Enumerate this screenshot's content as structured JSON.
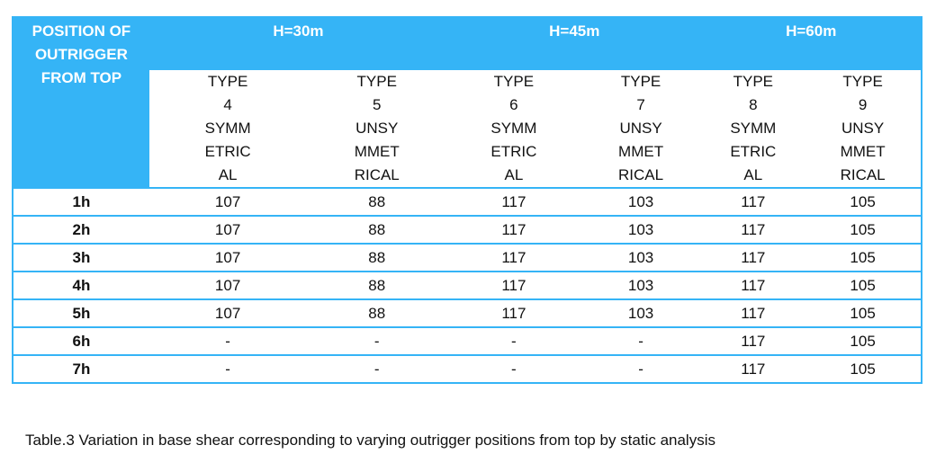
{
  "table": {
    "header": {
      "position": "POSITION OF\nOUTRIGGER\nFROM TOP",
      "groups": [
        "H=30m",
        "H=45m",
        "H=60m"
      ],
      "types": [
        "TYPE\n4",
        "TYPE\n5",
        "TYPE\n6",
        "TYPE\n7",
        "TYPE\n8",
        "TYPE\n9"
      ],
      "symmetry": [
        "SYMM\nETRIC\nAL",
        "UNSY\nMMET\nRICAL",
        "SYMM\nETRIC\nAL",
        "UNSY\nMMET\nRICAL",
        "SYMM\nETRIC\nAL",
        "UNSY\nMMET\nRICAL"
      ]
    },
    "rows": [
      [
        "1h",
        107,
        88,
        117,
        103,
        117,
        105
      ],
      [
        "2h",
        107,
        88,
        117,
        103,
        117,
        105
      ],
      [
        "3h",
        107,
        88,
        117,
        103,
        117,
        105
      ],
      [
        "4h",
        107,
        88,
        117,
        103,
        117,
        105
      ],
      [
        "5h",
        107,
        88,
        117,
        103,
        117,
        105
      ],
      [
        "6h",
        "-",
        "-",
        "-",
        "-",
        117,
        105
      ],
      [
        "7h",
        "-",
        "-",
        "-",
        "-",
        117,
        105
      ]
    ]
  },
  "caption": "Table.3 Variation in base shear corresponding to varying outrigger positions from top by static analysis"
}
